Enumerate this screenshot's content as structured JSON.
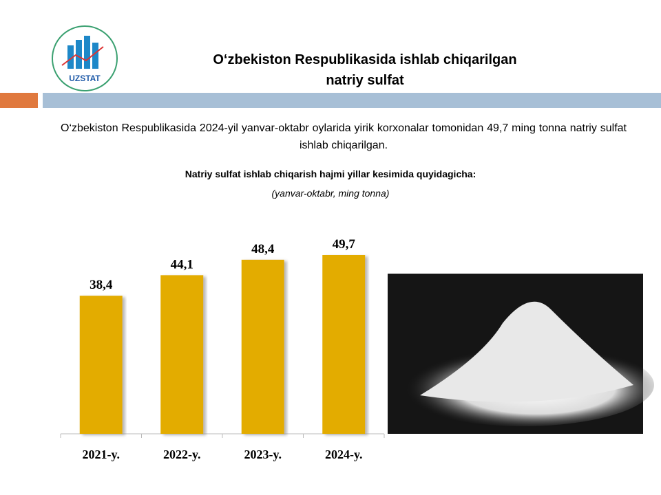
{
  "header": {
    "title": [
      "O‘zbekiston Respublikasida ishlab chiqarilgan",
      "natriy sulfat"
    ],
    "logo_text": "UZSTAT"
  },
  "paragraph": "O‘zbekiston  Respublikasida 2024-yil yanvar-oktabr oylarida yirik korxonalar tomonidan 49,7 ming tonna natriy sulfat ishlab chiqarilgan.",
  "chart_data": {
    "type": "bar",
    "title": "Natriy sulfat ishlab chiqarish hajmi yillar kesimida quyidagicha:",
    "subtitle": "(yanvar-oktabr, ming tonna)",
    "categories": [
      "2021-y.",
      "2022-y.",
      "2023-y.",
      "2024-y."
    ],
    "values": [
      38.4,
      44.1,
      48.4,
      49.7
    ],
    "value_labels": [
      "38,4",
      "44,1",
      "48,4",
      "49,7"
    ],
    "color": "#e3ac00"
  }
}
